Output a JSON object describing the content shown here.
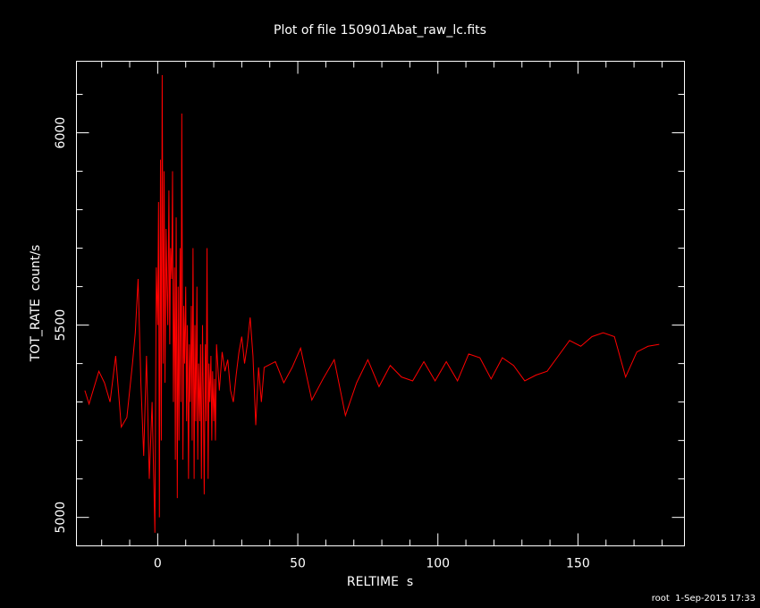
{
  "chart_data": {
    "type": "line",
    "title": "Plot of file 150901Abat_raw_lc.fits",
    "x_label": "RELTIME  s",
    "y_label": "TOT_RATE  count/s",
    "footer": "root  1-Sep-2015 17:33",
    "color": "#ff0000",
    "xlim": [
      -29,
      188
    ],
    "ylim": [
      4926,
      6186
    ],
    "xticks": [
      0,
      50,
      100,
      150
    ],
    "yticks": [
      5000,
      5500,
      6000
    ],
    "xminorticks": [
      -20,
      -10,
      10,
      20,
      30,
      40,
      60,
      70,
      80,
      90,
      110,
      120,
      130,
      140,
      160,
      170,
      180
    ],
    "yminorticks": [
      5100,
      5200,
      5300,
      5400,
      5600,
      5700,
      5800,
      5900,
      6100
    ],
    "x": [
      -26,
      -24.5,
      -21,
      -19,
      -17,
      -15,
      -13,
      -11,
      -9,
      -8,
      -7,
      -6,
      -5,
      -4,
      -3,
      -2,
      -1,
      -0.5,
      0,
      0.3,
      0.6,
      1,
      1.3,
      1.6,
      2,
      2.3,
      2.6,
      3,
      3.3,
      3.6,
      4,
      4.3,
      4.6,
      5,
      5.3,
      5.6,
      6,
      6.3,
      6.6,
      7,
      7.3,
      7.6,
      8,
      8.3,
      8.6,
      9,
      9.3,
      9.6,
      10,
      10.3,
      10.6,
      11,
      11.3,
      11.6,
      12,
      12.3,
      12.6,
      13,
      13.3,
      13.6,
      14,
      14.3,
      14.6,
      15,
      15.3,
      15.6,
      16,
      16.3,
      16.6,
      17,
      17.3,
      17.6,
      18,
      18.3,
      18.6,
      19,
      19.3,
      19.6,
      20,
      20.3,
      20.6,
      21,
      22,
      23,
      24,
      25,
      26,
      27,
      28,
      29,
      30,
      31,
      32,
      33,
      34,
      35,
      36,
      37,
      38,
      42,
      45,
      48,
      51,
      55,
      59,
      63,
      67,
      71,
      75,
      79,
      83,
      87,
      91,
      95,
      99,
      103,
      107,
      111,
      115,
      119,
      123,
      127,
      131,
      135,
      139,
      143,
      147,
      151,
      155,
      159,
      163,
      167,
      171,
      175,
      179
    ],
    "values": [
      5330,
      5295,
      5380,
      5350,
      5300,
      5420,
      5235,
      5260,
      5400,
      5480,
      5620,
      5350,
      5160,
      5420,
      5100,
      5300,
      4960,
      5650,
      5500,
      5820,
      5000,
      5930,
      5200,
      6150,
      5400,
      5900,
      5350,
      5750,
      5600,
      5500,
      5850,
      5450,
      5700,
      5620,
      5900,
      5300,
      5650,
      5150,
      5780,
      5050,
      5600,
      5200,
      5700,
      5300,
      6050,
      5150,
      5550,
      5400,
      5600,
      5250,
      5500,
      5100,
      5450,
      5300,
      5550,
      5200,
      5700,
      5100,
      5500,
      5250,
      5600,
      5150,
      5400,
      5250,
      5450,
      5100,
      5500,
      5300,
      5060,
      5450,
      5250,
      5700,
      5100,
      5400,
      5300,
      5420,
      5200,
      5380,
      5250,
      5360,
      5200,
      5450,
      5330,
      5430,
      5380,
      5410,
      5330,
      5300,
      5370,
      5430,
      5470,
      5400,
      5450,
      5520,
      5420,
      5240,
      5390,
      5300,
      5390,
      5405,
      5350,
      5390,
      5440,
      5305,
      5360,
      5410,
      5265,
      5350,
      5410,
      5340,
      5395,
      5365,
      5355,
      5405,
      5355,
      5405,
      5355,
      5425,
      5415,
      5360,
      5415,
      5395,
      5355,
      5370,
      5380,
      5420,
      5460,
      5445,
      5470,
      5480,
      5470,
      5365,
      5430,
      5445,
      5450
    ]
  }
}
